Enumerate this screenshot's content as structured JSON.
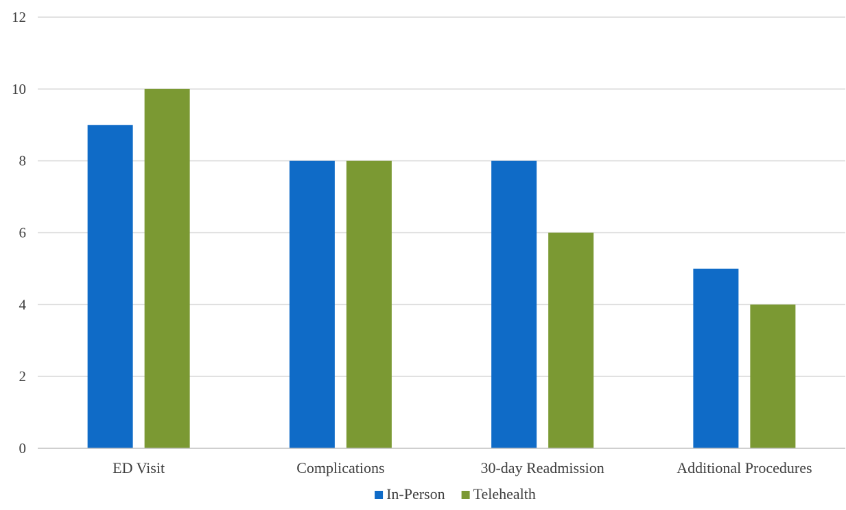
{
  "chart_data": {
    "type": "bar",
    "categories": [
      "ED Visit",
      "Complications",
      "30-day Readmission",
      "Additional Procedures"
    ],
    "series": [
      {
        "name": "In-Person",
        "values": [
          9,
          8,
          8,
          5
        ],
        "color": "#0F6BC7"
      },
      {
        "name": "Telehealth",
        "values": [
          10,
          8,
          6,
          4
        ],
        "color": "#7B9933"
      }
    ],
    "ylim": [
      0,
      12
    ],
    "yticks": [
      0,
      2,
      4,
      6,
      8,
      10,
      12
    ],
    "grid": true,
    "legend_position": "bottom"
  },
  "colors": {
    "gridline": "#D9D9D9",
    "axis": "#BFBFBF",
    "text": "#404040"
  }
}
